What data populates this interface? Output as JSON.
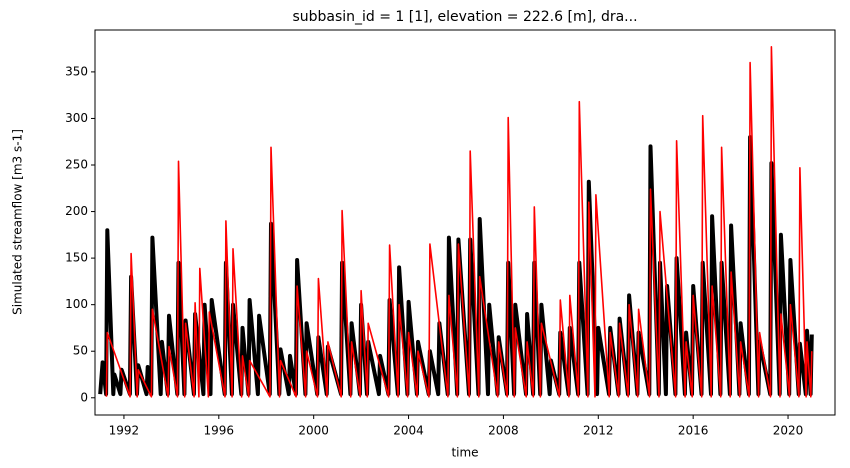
{
  "chart_data": {
    "type": "line",
    "title": "subbasin_id = 1 [1], elevation = 222.6 [m], dra...",
    "xlabel": "time",
    "ylabel": "Simulated streamflow [m3 s-1]",
    "xlim": [
      1990.78,
      2021.98
    ],
    "ylim": [
      -18.5,
      395
    ],
    "xticks": [
      1992,
      1996,
      2000,
      2004,
      2008,
      2012,
      2016,
      2020
    ],
    "yticks": [
      0,
      50,
      100,
      150,
      200,
      250,
      300,
      350
    ],
    "series": [
      {
        "color": "#000000",
        "x": [
          1991.0,
          1991.1,
          1991.25,
          1991.3,
          1991.55,
          1991.6,
          1991.85,
          1991.9,
          1992.25,
          1992.3,
          1992.55,
          1992.6,
          1992.95,
          1993.0,
          1993.15,
          1993.2,
          1993.55,
          1993.6,
          1993.85,
          1993.9,
          1994.25,
          1994.3,
          1994.55,
          1994.6,
          1994.95,
          1995.0,
          1995.35,
          1995.4,
          1995.65,
          1995.7,
          1996.25,
          1996.3,
          1996.55,
          1996.6,
          1996.95,
          1997.0,
          1997.25,
          1997.3,
          1997.65,
          1997.7,
          1998.15,
          1998.2,
          1998.55,
          1998.6,
          1998.95,
          1999.0,
          1999.25,
          1999.3,
          1999.65,
          1999.7,
          2000.15,
          2000.2,
          2000.55,
          2000.6,
          2001.15,
          2001.2,
          2001.55,
          2001.6,
          2001.95,
          2002.0,
          2002.25,
          2002.3,
          2002.75,
          2002.8,
          2003.15,
          2003.2,
          2003.55,
          2003.6,
          2003.95,
          2004.0,
          2004.35,
          2004.4,
          2004.85,
          2004.9,
          2005.25,
          2005.3,
          2005.65,
          2005.7,
          2006.05,
          2006.1,
          2006.55,
          2006.6,
          2006.95,
          2007.0,
          2007.35,
          2007.4,
          2007.75,
          2007.8,
          2008.15,
          2008.2,
          2008.45,
          2008.5,
          2008.95,
          2009.0,
          2009.25,
          2009.3,
          2009.55,
          2009.6,
          2009.95,
          2010.0,
          2010.35,
          2010.4,
          2010.75,
          2010.8,
          2011.15,
          2011.2,
          2011.55,
          2011.6,
          2011.95,
          2012.0,
          2012.45,
          2012.5,
          2012.85,
          2012.9,
          2013.25,
          2013.3,
          2013.65,
          2013.7,
          2014.15,
          2014.2,
          2014.55,
          2014.6,
          2014.85,
          2014.9,
          2015.25,
          2015.3,
          2015.65,
          2015.7,
          2015.95,
          2016.0,
          2016.35,
          2016.4,
          2016.75,
          2016.8,
          2017.15,
          2017.2,
          2017.55,
          2017.6,
          2017.95,
          2018.0,
          2018.35,
          2018.4,
          2018.75,
          2018.8,
          2019.25,
          2019.3,
          2019.65,
          2019.7,
          2020.05,
          2020.1,
          2020.45,
          2020.5,
          2020.75,
          2020.8,
          2020.95,
          2021.0
        ],
        "values": [
          4,
          38,
          4,
          180,
          4,
          25,
          4,
          30,
          4,
          130,
          4,
          35,
          4,
          33,
          4,
          172,
          4,
          60,
          4,
          88,
          4,
          145,
          4,
          83,
          4,
          90,
          4,
          100,
          4,
          105,
          4,
          145,
          4,
          100,
          4,
          75,
          4,
          105,
          4,
          88,
          4,
          187,
          4,
          52,
          4,
          45,
          4,
          148,
          4,
          80,
          4,
          65,
          4,
          55,
          4,
          145,
          4,
          80,
          4,
          100,
          4,
          60,
          4,
          45,
          4,
          105,
          4,
          140,
          4,
          103,
          4,
          60,
          4,
          50,
          4,
          80,
          4,
          172,
          4,
          170,
          4,
          170,
          4,
          192,
          4,
          100,
          4,
          65,
          4,
          145,
          4,
          100,
          4,
          90,
          4,
          145,
          4,
          100,
          4,
          40,
          4,
          70,
          4,
          75,
          4,
          145,
          4,
          232,
          4,
          75,
          4,
          75,
          4,
          85,
          4,
          110,
          4,
          70,
          4,
          270,
          4,
          145,
          4,
          120,
          4,
          150,
          4,
          70,
          4,
          120,
          4,
          145,
          4,
          195,
          4,
          145,
          4,
          185,
          4,
          80,
          4,
          280,
          4,
          60,
          4,
          252,
          4,
          175,
          4,
          148,
          4,
          58,
          4,
          72,
          4,
          68
        ]
      },
      {
        "color": "#ff0000",
        "x": [
          1991.26,
          1991.3,
          1992.26,
          1992.3,
          1992.56,
          1992.6,
          1993.16,
          1993.2,
          1993.86,
          1993.9,
          1994.26,
          1994.3,
          1994.56,
          1994.6,
          1994.96,
          1995.0,
          1995.16,
          1995.2,
          1995.56,
          1995.6,
          1996.26,
          1996.3,
          1996.56,
          1996.6,
          1996.96,
          1997.0,
          1997.26,
          1997.3,
          1998.16,
          1998.2,
          1998.56,
          1998.6,
          1999.26,
          1999.3,
          1999.66,
          1999.7,
          2000.16,
          2000.2,
          2000.56,
          2000.6,
          2001.16,
          2001.2,
          2001.56,
          2001.6,
          2001.96,
          2002.0,
          2002.26,
          2002.3,
          2003.16,
          2003.2,
          2003.56,
          2003.6,
          2003.96,
          2004.0,
          2004.36,
          2004.4,
          2004.86,
          2004.9,
          2005.66,
          2005.7,
          2006.06,
          2006.1,
          2006.56,
          2006.6,
          2006.96,
          2007.0,
          2007.76,
          2007.8,
          2008.16,
          2008.2,
          2008.46,
          2008.5,
          2008.96,
          2009.0,
          2009.26,
          2009.3,
          2009.56,
          2009.6,
          2010.36,
          2010.4,
          2010.76,
          2010.8,
          2011.16,
          2011.2,
          2011.56,
          2011.6,
          2011.86,
          2011.9,
          2012.46,
          2012.5,
          2012.86,
          2012.9,
          2013.26,
          2013.3,
          2013.66,
          2013.7,
          2014.16,
          2014.2,
          2014.56,
          2014.6,
          2015.26,
          2015.3,
          2015.66,
          2015.7,
          2015.96,
          2016.0,
          2016.36,
          2016.4,
          2016.76,
          2016.8,
          2017.16,
          2017.2,
          2017.56,
          2017.6,
          2017.96,
          2018.0,
          2018.36,
          2018.4,
          2018.76,
          2018.8,
          2019.26,
          2019.3,
          2019.66,
          2019.7,
          2020.06,
          2020.1,
          2020.46,
          2020.5,
          2020.76,
          2020.8,
          2020.96,
          2021.0
        ],
        "values": [
          1,
          70,
          1,
          155,
          1,
          30,
          1,
          95,
          1,
          55,
          1,
          254,
          1,
          80,
          1,
          102,
          1,
          139,
          1,
          92,
          1,
          190,
          1,
          160,
          1,
          45,
          1,
          40,
          1,
          269,
          1,
          40,
          1,
          120,
          1,
          50,
          1,
          128,
          1,
          60,
          1,
          201,
          1,
          60,
          1,
          115,
          1,
          80,
          1,
          164,
          1,
          100,
          1,
          70,
          1,
          50,
          1,
          165,
          1,
          110,
          1,
          165,
          1,
          265,
          1,
          130,
          1,
          60,
          1,
          301,
          1,
          75,
          1,
          60,
          1,
          205,
          1,
          80,
          1,
          105,
          1,
          110,
          1,
          318,
          1,
          210,
          1,
          218,
          1,
          70,
          1,
          80,
          1,
          100,
          1,
          95,
          1,
          224,
          1,
          200,
          1,
          276,
          1,
          60,
          1,
          110,
          1,
          303,
          1,
          120,
          1,
          269,
          1,
          135,
          1,
          60,
          1,
          360,
          1,
          70,
          1,
          377,
          1,
          90,
          1,
          100,
          1,
          247,
          1,
          60,
          1,
          50
        ]
      }
    ]
  }
}
